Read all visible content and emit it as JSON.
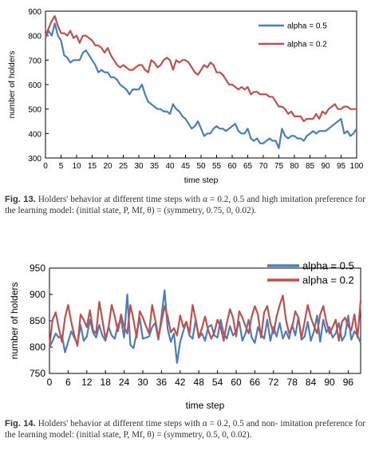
{
  "chart_data": [
    {
      "type": "line",
      "ylabel": "number of holders",
      "xlabel": "time step",
      "xlim": [
        0,
        100
      ],
      "ylim": [
        300,
        900
      ],
      "xticks": [
        0,
        5,
        10,
        15,
        20,
        25,
        30,
        35,
        40,
        45,
        50,
        55,
        60,
        65,
        70,
        75,
        80,
        85,
        90,
        95,
        100
      ],
      "yticks": [
        300,
        400,
        500,
        600,
        700,
        800,
        900
      ],
      "legend": "top-right",
      "grid": false,
      "series": [
        {
          "name": "alpha = 0.5",
          "color": "#4a7ebb",
          "values": [
            790,
            820,
            800,
            850,
            800,
            780,
            720,
            710,
            690,
            700,
            700,
            700,
            730,
            740,
            720,
            700,
            680,
            650,
            660,
            650,
            650,
            630,
            630,
            620,
            600,
            590,
            580,
            560,
            580,
            580,
            580,
            600,
            560,
            530,
            520,
            510,
            500,
            500,
            490,
            490,
            480,
            520,
            500,
            490,
            470,
            460,
            440,
            420,
            430,
            450,
            420,
            390,
            400,
            400,
            420,
            430,
            420,
            420,
            410,
            420,
            430,
            440,
            410,
            400,
            400,
            420,
            380,
            370,
            380,
            360,
            360,
            370,
            380,
            370,
            370,
            340,
            420,
            390,
            380,
            390,
            390,
            380,
            380,
            370,
            390,
            400,
            410,
            400,
            410,
            410,
            410,
            420,
            430,
            440,
            450,
            460,
            400,
            410,
            390,
            400,
            420
          ]
        },
        {
          "name": "alpha = 0.2",
          "color": "#c0504d",
          "values": [
            800,
            830,
            860,
            880,
            840,
            810,
            810,
            800,
            820,
            790,
            800,
            770,
            800,
            800,
            790,
            780,
            760,
            760,
            750,
            730,
            750,
            720,
            700,
            680,
            670,
            680,
            670,
            660,
            660,
            670,
            680,
            680,
            660,
            650,
            700,
            690,
            670,
            680,
            700,
            710,
            700,
            660,
            700,
            690,
            700,
            700,
            690,
            670,
            650,
            640,
            660,
            680,
            670,
            690,
            680,
            650,
            650,
            640,
            620,
            600,
            600,
            590,
            580,
            590,
            580,
            590,
            560,
            570,
            570,
            560,
            560,
            560,
            550,
            550,
            530,
            510,
            510,
            500,
            480,
            490,
            470,
            470,
            470,
            450,
            460,
            460,
            460,
            480,
            460,
            490,
            480,
            500,
            510,
            520,
            500,
            500,
            510,
            510,
            500,
            500,
            500
          ]
        }
      ]
    },
    {
      "type": "line",
      "ylabel": "number of holders",
      "xlabel": "time step",
      "xlim": [
        0,
        100
      ],
      "ylim": [
        750,
        950
      ],
      "xticks": [
        0,
        6,
        12,
        18,
        24,
        30,
        36,
        42,
        48,
        54,
        60,
        66,
        72,
        78,
        84,
        90,
        96
      ],
      "yticks": [
        750,
        800,
        850,
        900,
        950
      ],
      "legend": "top-right",
      "grid": false,
      "series": [
        {
          "name": "alpha = 0.5",
          "color": "#4a7ebb",
          "values": [
            800,
            812,
            826,
            818,
            822,
            790,
            810,
            830,
            818,
            806,
            842,
            812,
            820,
            852,
            828,
            818,
            842,
            822,
            812,
            838,
            822,
            816,
            842,
            852,
            818,
            900,
            804,
            798,
            826,
            856,
            816,
            818,
            820,
            838,
            846,
            814,
            858,
            908,
            834,
            810,
            826,
            770,
            810,
            830,
            848,
            822,
            816,
            852,
            818,
            826,
            812,
            838,
            842,
            822,
            818,
            852,
            826,
            816,
            840,
            822,
            830,
            848,
            812,
            826,
            852,
            818,
            808,
            838,
            824,
            816,
            852,
            812,
            838,
            820,
            846,
            816,
            830,
            816,
            842,
            822,
            856,
            814,
            820,
            848,
            812,
            830,
            860,
            810,
            852,
            828,
            838,
            818,
            826,
            846,
            812,
            822,
            860,
            814,
            830,
            822,
            808
          ]
        },
        {
          "name": "alpha = 0.2",
          "color": "#c0504d",
          "values": [
            802,
            852,
            866,
            836,
            810,
            856,
            880,
            848,
            822,
            802,
            862,
            852,
            838,
            870,
            832,
            826,
            886,
            852,
            816,
            838,
            880,
            858,
            830,
            862,
            838,
            826,
            880,
            852,
            818,
            868,
            856,
            840,
            826,
            880,
            852,
            818,
            848,
            878,
            858,
            828,
            836,
            822,
            860,
            838,
            848,
            826,
            880,
            852,
            818,
            836,
            858,
            832,
            816,
            828,
            852,
            838,
            812,
            846,
            872,
            856,
            820,
            868,
            856,
            840,
            826,
            858,
            878,
            862,
            818,
            866,
            878,
            846,
            826,
            858,
            880,
            898,
            852,
            826,
            838,
            868,
            856,
            818,
            848,
            880,
            856,
            840,
            826,
            862,
            878,
            848,
            826,
            838,
            852,
            812,
            848,
            856,
            840,
            832,
            862,
            818,
            888
          ]
        }
      ]
    }
  ],
  "captions": [
    {
      "label": "Fig. 13.",
      "line1": "Holders' behavior at different time steps with α = 0.2, 0.5 and high",
      "line2": "imitation preference for the learning model: (initial state, P, Mf, θ) =",
      "line3": "(symmetry, 0.75, 0, 0.02)."
    },
    {
      "label": "Fig. 14.",
      "line1": "Holders' behavior at different time steps with α = 0.2, 0.5 and non-",
      "line2": "imitation preference for the learning model: (initial state, P, Mf, θ) =",
      "line3": "(symmetry, 0.5, 0, 0.02)."
    }
  ]
}
